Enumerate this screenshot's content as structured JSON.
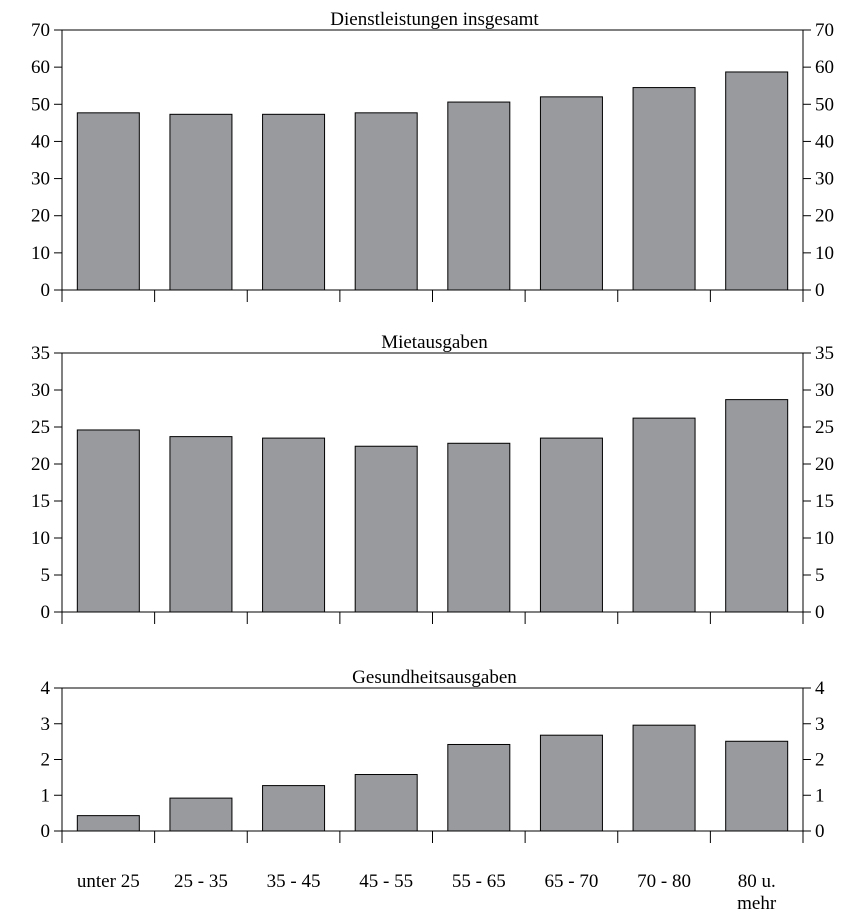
{
  "chart_data": [
    {
      "type": "bar",
      "title": "Dienstleistungen insgesamt",
      "categories": [
        "unter 25",
        "25 - 35",
        "35 - 45",
        "45 - 55",
        "55 - 65",
        "65 - 70",
        "70 - 80",
        "80 u. mehr"
      ],
      "values": [
        47.7,
        47.3,
        47.3,
        47.7,
        50.6,
        52.0,
        54.5,
        58.7
      ],
      "ylim": [
        0,
        70
      ],
      "yticks": [
        0,
        10,
        20,
        30,
        40,
        50,
        60,
        70
      ],
      "ytick_labels": [
        "0",
        "10",
        "20",
        "30",
        "40",
        "50",
        "60",
        "70"
      ],
      "grid": false
    },
    {
      "type": "bar",
      "title": "Mietausgaben",
      "categories": [
        "unter 25",
        "25 - 35",
        "35 - 45",
        "45 - 55",
        "55 - 65",
        "65 - 70",
        "70 - 80",
        "80 u. mehr"
      ],
      "values": [
        24.6,
        23.7,
        23.5,
        22.4,
        22.8,
        23.5,
        26.2,
        28.7
      ],
      "ylim": [
        0,
        35
      ],
      "yticks": [
        0,
        5,
        10,
        15,
        20,
        25,
        30,
        35
      ],
      "ytick_labels": [
        "0",
        "5",
        "10",
        "15",
        "20",
        "25",
        "30",
        "35"
      ],
      "grid": false
    },
    {
      "type": "bar",
      "title": "Gesundheitsausgaben",
      "categories": [
        "unter 25",
        "25 - 35",
        "35 - 45",
        "45 - 55",
        "55 - 65",
        "65 - 70",
        "70 - 80",
        "80 u. mehr"
      ],
      "values": [
        0.43,
        0.92,
        1.27,
        1.58,
        2.42,
        2.68,
        2.96,
        2.51
      ],
      "ylim": [
        0,
        4
      ],
      "yticks": [
        0,
        1,
        2,
        3,
        4
      ],
      "ytick_labels": [
        "0",
        "1",
        "2",
        "3",
        "4"
      ],
      "grid": false
    }
  ],
  "x_axis": {
    "labels": [
      [
        "unter 25"
      ],
      [
        "25 - 35"
      ],
      [
        "35 - 45"
      ],
      [
        "45 - 55"
      ],
      [
        "55 - 65"
      ],
      [
        "65 - 70"
      ],
      [
        "70 - 80"
      ],
      [
        "80 u.",
        "mehr"
      ]
    ]
  },
  "colors": {
    "bar_fill": "#999a9e",
    "bar_stroke": "#000000",
    "axis": "#000000"
  }
}
